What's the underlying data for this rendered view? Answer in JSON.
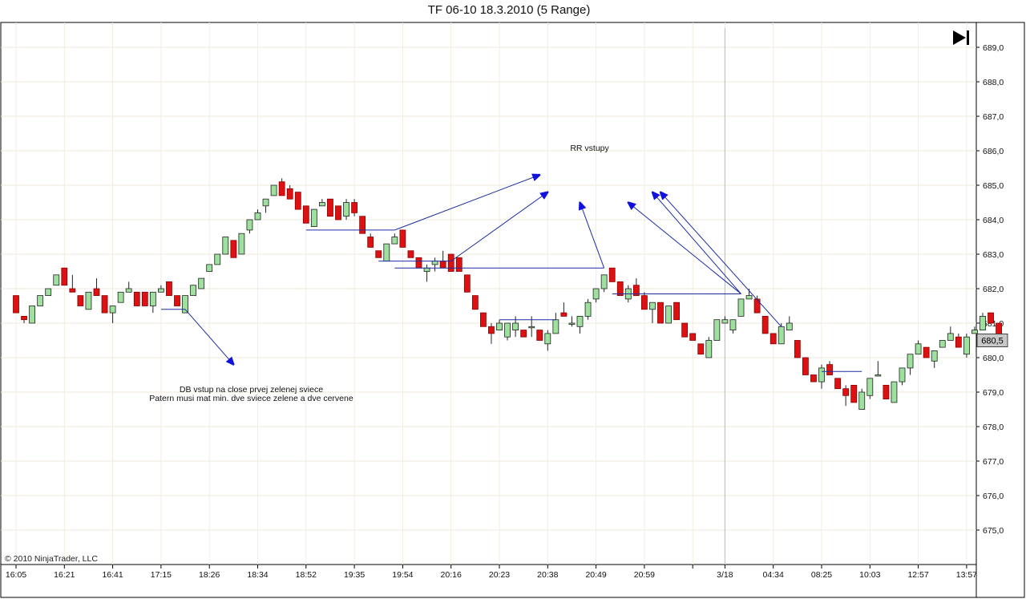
{
  "chart_data": {
    "type": "candlestick",
    "title": "TF 06-10  18.3.2010 (5 Range)",
    "ylim": [
      674.2,
      689.5
    ],
    "y_ticks": [
      "689,0",
      "688,0",
      "687,0",
      "686,0",
      "685,0",
      "684,0",
      "683,0",
      "682,0",
      "681,0",
      "680,0",
      "679,0",
      "678,0",
      "677,0",
      "676,0",
      "675,0"
    ],
    "y_tick_values": [
      689,
      688,
      687,
      686,
      685,
      684,
      683,
      682,
      681,
      680,
      679,
      678,
      677,
      676,
      675
    ],
    "x_ticks": [
      {
        "label": "16:05",
        "index": 0
      },
      {
        "label": "16:21",
        "index": 6
      },
      {
        "label": "16:41",
        "index": 12
      },
      {
        "label": "17:15",
        "index": 18
      },
      {
        "label": "18:26",
        "index": 24
      },
      {
        "label": "18:34",
        "index": 30
      },
      {
        "label": "18:52",
        "index": 36
      },
      {
        "label": "19:35",
        "index": 42
      },
      {
        "label": "19:54",
        "index": 48
      },
      {
        "label": "20:16",
        "index": 54
      },
      {
        "label": "20:23",
        "index": 60
      },
      {
        "label": "20:38",
        "index": 66
      },
      {
        "label": "20:49",
        "index": 72
      },
      {
        "label": "20:59",
        "index": 78
      },
      {
        "label": "",
        "index": 84
      },
      {
        "label": "3/18",
        "index": 88
      },
      {
        "label": "04:34",
        "index": 94
      },
      {
        "label": "08:25",
        "index": 100
      },
      {
        "label": "10:03",
        "index": 106
      },
      {
        "label": "12:57",
        "index": 112
      },
      {
        "label": "13:57",
        "index": 118
      }
    ],
    "session_break_index": 88,
    "last_price_label": "680,5",
    "last_price": 680.5,
    "candles": [
      [
        681.8,
        681.8,
        681.3,
        681.3
      ],
      [
        681.2,
        681.2,
        681.0,
        681.1
      ],
      [
        681.0,
        681.5,
        681.0,
        681.5
      ],
      [
        681.5,
        681.8,
        681.5,
        681.8
      ],
      [
        681.8,
        682.0,
        681.8,
        682.0
      ],
      [
        682.1,
        682.4,
        682.1,
        682.4
      ],
      [
        682.6,
        682.6,
        682.1,
        682.1
      ],
      [
        682.0,
        682.4,
        681.9,
        681.9
      ],
      [
        681.8,
        681.8,
        681.5,
        681.5
      ],
      [
        681.4,
        681.9,
        681.4,
        681.9
      ],
      [
        682.0,
        682.3,
        681.8,
        681.8
      ],
      [
        681.8,
        681.8,
        681.3,
        681.3
      ],
      [
        681.3,
        681.5,
        681.0,
        681.5
      ],
      [
        681.6,
        681.9,
        681.6,
        681.9
      ],
      [
        681.9,
        682.2,
        681.9,
        682.0
      ],
      [
        681.9,
        681.9,
        681.5,
        681.5
      ],
      [
        681.9,
        681.9,
        681.5,
        681.5
      ],
      [
        681.5,
        681.9,
        681.3,
        681.9
      ],
      [
        681.9,
        682.1,
        681.9,
        682.0
      ],
      [
        682.2,
        682.2,
        681.8,
        681.8
      ],
      [
        681.8,
        681.8,
        681.5,
        681.5
      ],
      [
        681.3,
        681.8,
        681.3,
        681.8
      ],
      [
        681.8,
        682.1,
        681.8,
        682.1
      ],
      [
        682.0,
        682.3,
        682.0,
        682.3
      ],
      [
        682.5,
        682.7,
        682.5,
        682.7
      ],
      [
        682.7,
        683.0,
        682.7,
        683.0
      ],
      [
        683.0,
        683.5,
        683.0,
        683.5
      ],
      [
        683.4,
        683.4,
        682.9,
        682.9
      ],
      [
        683.0,
        683.6,
        683.0,
        683.6
      ],
      [
        683.7,
        684.0,
        683.6,
        684.0
      ],
      [
        684.0,
        684.3,
        684.0,
        684.2
      ],
      [
        684.4,
        684.6,
        684.2,
        684.6
      ],
      [
        684.7,
        685.0,
        684.7,
        685.0
      ],
      [
        685.1,
        685.2,
        684.7,
        684.7
      ],
      [
        684.9,
        685.0,
        684.6,
        684.6
      ],
      [
        684.8,
        684.8,
        684.3,
        684.3
      ],
      [
        684.4,
        684.4,
        683.9,
        683.9
      ],
      [
        683.8,
        684.3,
        683.8,
        684.3
      ],
      [
        684.4,
        684.6,
        684.4,
        684.5
      ],
      [
        684.6,
        684.6,
        684.1,
        684.1
      ],
      [
        684.4,
        684.4,
        684.0,
        684.0
      ],
      [
        684.1,
        684.6,
        684.0,
        684.5
      ],
      [
        684.5,
        684.6,
        684.1,
        684.2
      ],
      [
        684.1,
        684.1,
        683.6,
        683.6
      ],
      [
        683.5,
        683.6,
        683.2,
        683.2
      ],
      [
        683.1,
        683.1,
        682.9,
        682.9
      ],
      [
        682.8,
        683.3,
        682.8,
        683.3
      ],
      [
        683.3,
        683.6,
        683.3,
        683.5
      ],
      [
        683.7,
        683.7,
        683.2,
        683.2
      ],
      [
        683.1,
        683.1,
        682.9,
        682.9
      ],
      [
        682.9,
        682.9,
        682.6,
        682.6
      ],
      [
        682.5,
        682.7,
        682.2,
        682.6
      ],
      [
        682.7,
        682.9,
        682.5,
        682.8
      ],
      [
        682.8,
        683.1,
        682.6,
        682.6
      ],
      [
        683.0,
        683.0,
        682.5,
        682.5
      ],
      [
        682.9,
        682.9,
        682.5,
        682.5
      ],
      [
        682.4,
        682.4,
        681.9,
        681.9
      ],
      [
        681.8,
        681.8,
        681.4,
        681.4
      ],
      [
        681.3,
        681.3,
        680.9,
        680.9
      ],
      [
        680.9,
        681.0,
        680.4,
        680.7
      ],
      [
        680.8,
        681.1,
        680.8,
        681.0
      ],
      [
        680.6,
        681.0,
        680.5,
        681.0
      ],
      [
        680.8,
        681.2,
        680.6,
        681.0
      ],
      [
        680.8,
        680.8,
        680.6,
        680.6
      ],
      [
        680.9,
        681.2,
        680.6,
        680.9
      ],
      [
        680.8,
        680.8,
        680.5,
        680.5
      ],
      [
        680.4,
        680.8,
        680.2,
        680.7
      ],
      [
        680.7,
        681.3,
        680.7,
        681.1
      ],
      [
        681.3,
        681.6,
        681.2,
        681.2
      ],
      [
        681.0,
        681.2,
        680.9,
        681.0
      ],
      [
        680.9,
        681.2,
        680.7,
        681.2
      ],
      [
        681.2,
        681.7,
        681.1,
        681.6
      ],
      [
        681.7,
        682.0,
        681.6,
        682.0
      ],
      [
        682.0,
        682.4,
        681.9,
        682.4
      ],
      [
        682.6,
        682.6,
        682.2,
        682.2
      ],
      [
        682.2,
        682.2,
        681.8,
        681.8
      ],
      [
        681.7,
        682.1,
        681.6,
        682.0
      ],
      [
        682.1,
        682.3,
        681.8,
        681.8
      ],
      [
        681.8,
        681.9,
        681.4,
        681.4
      ],
      [
        681.4,
        681.6,
        681.0,
        681.6
      ],
      [
        681.6,
        681.6,
        681.0,
        681.0
      ],
      [
        681.0,
        681.5,
        681.0,
        681.5
      ],
      [
        681.6,
        681.6,
        681.1,
        681.1
      ],
      [
        681.0,
        681.0,
        680.6,
        680.6
      ],
      [
        680.7,
        680.7,
        680.5,
        680.5
      ],
      [
        680.4,
        680.4,
        680.1,
        680.1
      ],
      [
        680.0,
        680.6,
        680.0,
        680.5
      ],
      [
        680.5,
        681.1,
        680.5,
        681.1
      ],
      [
        681.0,
        681.2,
        681.0,
        681.1
      ],
      [
        680.8,
        681.1,
        680.7,
        681.1
      ],
      [
        681.2,
        681.7,
        681.2,
        681.7
      ],
      [
        681.7,
        682.0,
        681.7,
        681.8
      ],
      [
        681.7,
        681.8,
        681.3,
        681.3
      ],
      [
        681.2,
        681.2,
        680.7,
        680.7
      ],
      [
        680.7,
        680.7,
        680.4,
        680.4
      ],
      [
        680.4,
        681.0,
        680.4,
        680.9
      ],
      [
        680.8,
        681.2,
        680.8,
        681.0
      ],
      [
        680.5,
        680.5,
        680.0,
        680.0
      ],
      [
        680.0,
        680.0,
        679.5,
        679.5
      ],
      [
        679.5,
        679.5,
        679.3,
        679.3
      ],
      [
        679.3,
        679.8,
        679.1,
        679.7
      ],
      [
        679.8,
        679.9,
        679.5,
        679.5
      ],
      [
        679.4,
        679.4,
        679.1,
        679.1
      ],
      [
        679.1,
        679.2,
        678.6,
        678.9
      ],
      [
        679.2,
        679.2,
        678.7,
        678.7
      ],
      [
        678.5,
        679.1,
        678.5,
        679.0
      ],
      [
        678.9,
        679.4,
        678.8,
        679.4
      ],
      [
        679.5,
        679.9,
        679.5,
        679.5
      ],
      [
        679.2,
        679.2,
        678.8,
        678.8
      ],
      [
        678.7,
        679.3,
        678.7,
        679.3
      ],
      [
        679.3,
        679.7,
        679.2,
        679.7
      ],
      [
        679.7,
        680.1,
        679.5,
        680.1
      ],
      [
        680.1,
        680.5,
        680.1,
        680.4
      ],
      [
        680.3,
        680.3,
        680.0,
        680.0
      ],
      [
        679.9,
        680.2,
        679.7,
        680.2
      ],
      [
        680.3,
        680.5,
        680.3,
        680.5
      ],
      [
        680.5,
        680.9,
        680.5,
        680.7
      ],
      [
        680.6,
        680.7,
        680.3,
        680.3
      ],
      [
        680.1,
        680.7,
        680.0,
        680.6
      ],
      [
        680.7,
        680.9,
        680.7,
        680.8
      ],
      [
        680.8,
        681.3,
        680.8,
        681.2
      ],
      [
        681.3,
        681.3,
        681.0,
        681.0
      ],
      [
        681.0,
        681.0,
        680.5,
        680.5
      ]
    ],
    "horizontal_lines": [
      {
        "x1": 18,
        "x2": 21,
        "y": 681.4
      },
      {
        "x1": 36,
        "x2": 47,
        "y": 683.7
      },
      {
        "x1": 45,
        "x2": 54,
        "y": 682.8
      },
      {
        "x1": 47,
        "x2": 73,
        "y": 682.6
      },
      {
        "x1": 60,
        "x2": 67,
        "y": 681.1
      },
      {
        "x1": 74,
        "x2": 90,
        "y": 681.85
      },
      {
        "x1": 100,
        "x2": 105,
        "y": 679.6
      }
    ],
    "arrows": [
      {
        "from": [
          21,
          681.4
        ],
        "to": [
          27,
          679.8
        ]
      },
      {
        "from": [
          47,
          683.7
        ],
        "to": [
          65,
          685.3
        ]
      },
      {
        "from": [
          54,
          682.8
        ],
        "to": [
          66,
          684.8
        ]
      },
      {
        "from": [
          73,
          682.6
        ],
        "to": [
          70,
          684.5
        ]
      },
      {
        "from": [
          90,
          681.85
        ],
        "to": [
          76,
          684.5
        ]
      },
      {
        "from": [
          90,
          681.85
        ],
        "to": [
          79,
          684.8
        ]
      },
      {
        "from": [
          95,
          680.9
        ],
        "to": [
          80,
          684.8
        ]
      }
    ],
    "annotations": [
      {
        "text": "RR vstupy",
        "x": 71.2,
        "y": 686.0
      },
      {
        "text": "DB vstup na close prvej zelenej sviece",
        "x": 29.2,
        "y": 679.0
      },
      {
        "text": "Patern musi mat min. dve sviece zelene a dve cervene",
        "x": 29.2,
        "y": 678.75
      }
    ],
    "colors": {
      "up": "#9ee09e",
      "down": "#dd1111",
      "outline": "#222222",
      "line": "#1a2ea0",
      "arrow": "#1111dd"
    }
  },
  "footer": {
    "copyright": "© 2010 NinjaTrader, LLC"
  },
  "toolbar": {
    "end_icon": "skip-to-end-icon"
  }
}
